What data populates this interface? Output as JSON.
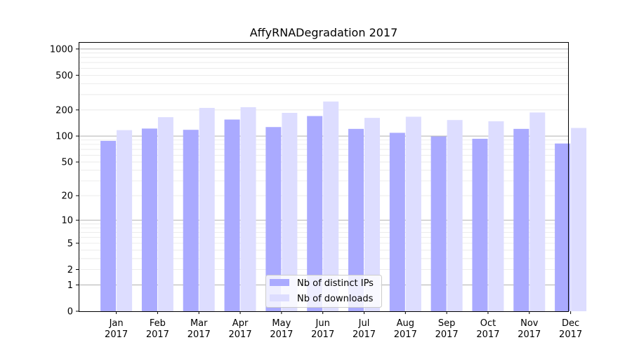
{
  "chart_data": {
    "type": "bar",
    "title": "AffyRNADegradation 2017",
    "xlabel": "",
    "ylabel": "",
    "y_scale": "log(1+y)",
    "ylim": [
      0,
      1200
    ],
    "y_ticks": [
      "0",
      "1",
      "2",
      "5",
      "10",
      "20",
      "50",
      "100",
      "200",
      "500",
      "1000"
    ],
    "y_tick_values": [
      0,
      1,
      2,
      5,
      10,
      20,
      50,
      100,
      200,
      500,
      1000
    ],
    "grid": "horizontal",
    "categories": [
      [
        "Jan",
        "2017"
      ],
      [
        "Feb",
        "2017"
      ],
      [
        "Mar",
        "2017"
      ],
      [
        "Apr",
        "2017"
      ],
      [
        "May",
        "2017"
      ],
      [
        "Jun",
        "2017"
      ],
      [
        "Jul",
        "2017"
      ],
      [
        "Aug",
        "2017"
      ],
      [
        "Sep",
        "2017"
      ],
      [
        "Oct",
        "2017"
      ],
      [
        "Nov",
        "2017"
      ],
      [
        "Dec",
        "2017"
      ]
    ],
    "series": [
      {
        "name": "Nb of distinct IPs",
        "color": "#aaaaff",
        "values": [
          88,
          122,
          118,
          155,
          127,
          170,
          121,
          109,
          99,
          93,
          121,
          82
        ]
      },
      {
        "name": "Nb of downloads",
        "color": "#ddddff",
        "values": [
          117,
          165,
          211,
          215,
          185,
          250,
          162,
          167,
          153,
          148,
          187,
          124
        ]
      }
    ],
    "legend_position": "bottom-center"
  }
}
